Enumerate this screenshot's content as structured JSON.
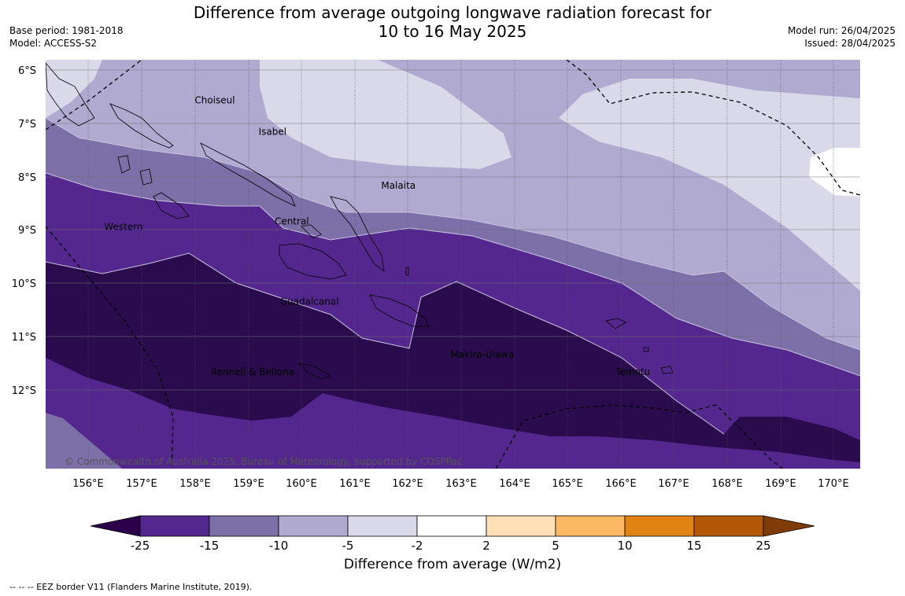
{
  "title_line1": "Difference from average outgoing longwave radiation forecast for",
  "title_line2": "10 to 16 May 2025",
  "base_period": "Base period: 1981-2018",
  "model": "Model: ACCESS-S2",
  "model_run": "Model run: 26/04/2025",
  "issued": "Issued: 28/04/2025",
  "copyright": "© Commonwealth of Australia 2025, Bureau of Meteorology, supported by COSPPac",
  "lat_labels": [
    "6°S",
    "7°S",
    "8°S",
    "9°S",
    "10°S",
    "11°S",
    "12°S"
  ],
  "lon_labels": [
    "156°E",
    "157°E",
    "158°E",
    "159°E",
    "160°E",
    "161°E",
    "162°E",
    "163°E",
    "164°E",
    "165°E",
    "166°E",
    "167°E",
    "168°E",
    "169°E",
    "170°E"
  ],
  "places": [
    {
      "name": "Choiseul",
      "lon": 158.0,
      "lat": -6.63
    },
    {
      "name": "Isabel",
      "lon": 159.2,
      "lat": -7.22
    },
    {
      "name": "Malaita",
      "lon": 161.5,
      "lat": -8.23
    },
    {
      "name": "Western",
      "lon": 156.3,
      "lat": -9.0
    },
    {
      "name": "Central",
      "lon": 159.5,
      "lat": -8.9
    },
    {
      "name": "Guadalcanal",
      "lon": 159.6,
      "lat": -10.4
    },
    {
      "name": "Makira-Ulawa",
      "lon": 162.8,
      "lat": -11.4
    },
    {
      "name": "Rennell & Bellona",
      "lon": 158.3,
      "lat": -11.72
    },
    {
      "name": "Temotu",
      "lon": 165.9,
      "lat": -11.72
    }
  ],
  "colorbar": {
    "ticks": [
      "-25",
      "-15",
      "-10",
      "-5",
      "-2",
      "2",
      "5",
      "10",
      "15",
      "25"
    ],
    "colors": [
      "#2a0b4e",
      "#54278f",
      "#7d6fa8",
      "#b0a9d0",
      "#d9d9ea",
      "#ffffff",
      "#fedfb6",
      "#fdb863",
      "#e08214",
      "#b35806"
    ],
    "extend_low": "#2d004b",
    "extend_high": "#7f3b08",
    "label": "Difference from average (W/m2)"
  },
  "footnote": "--  --  -- EEZ border V11 (Flanders Marine Institute, 2019)."
}
